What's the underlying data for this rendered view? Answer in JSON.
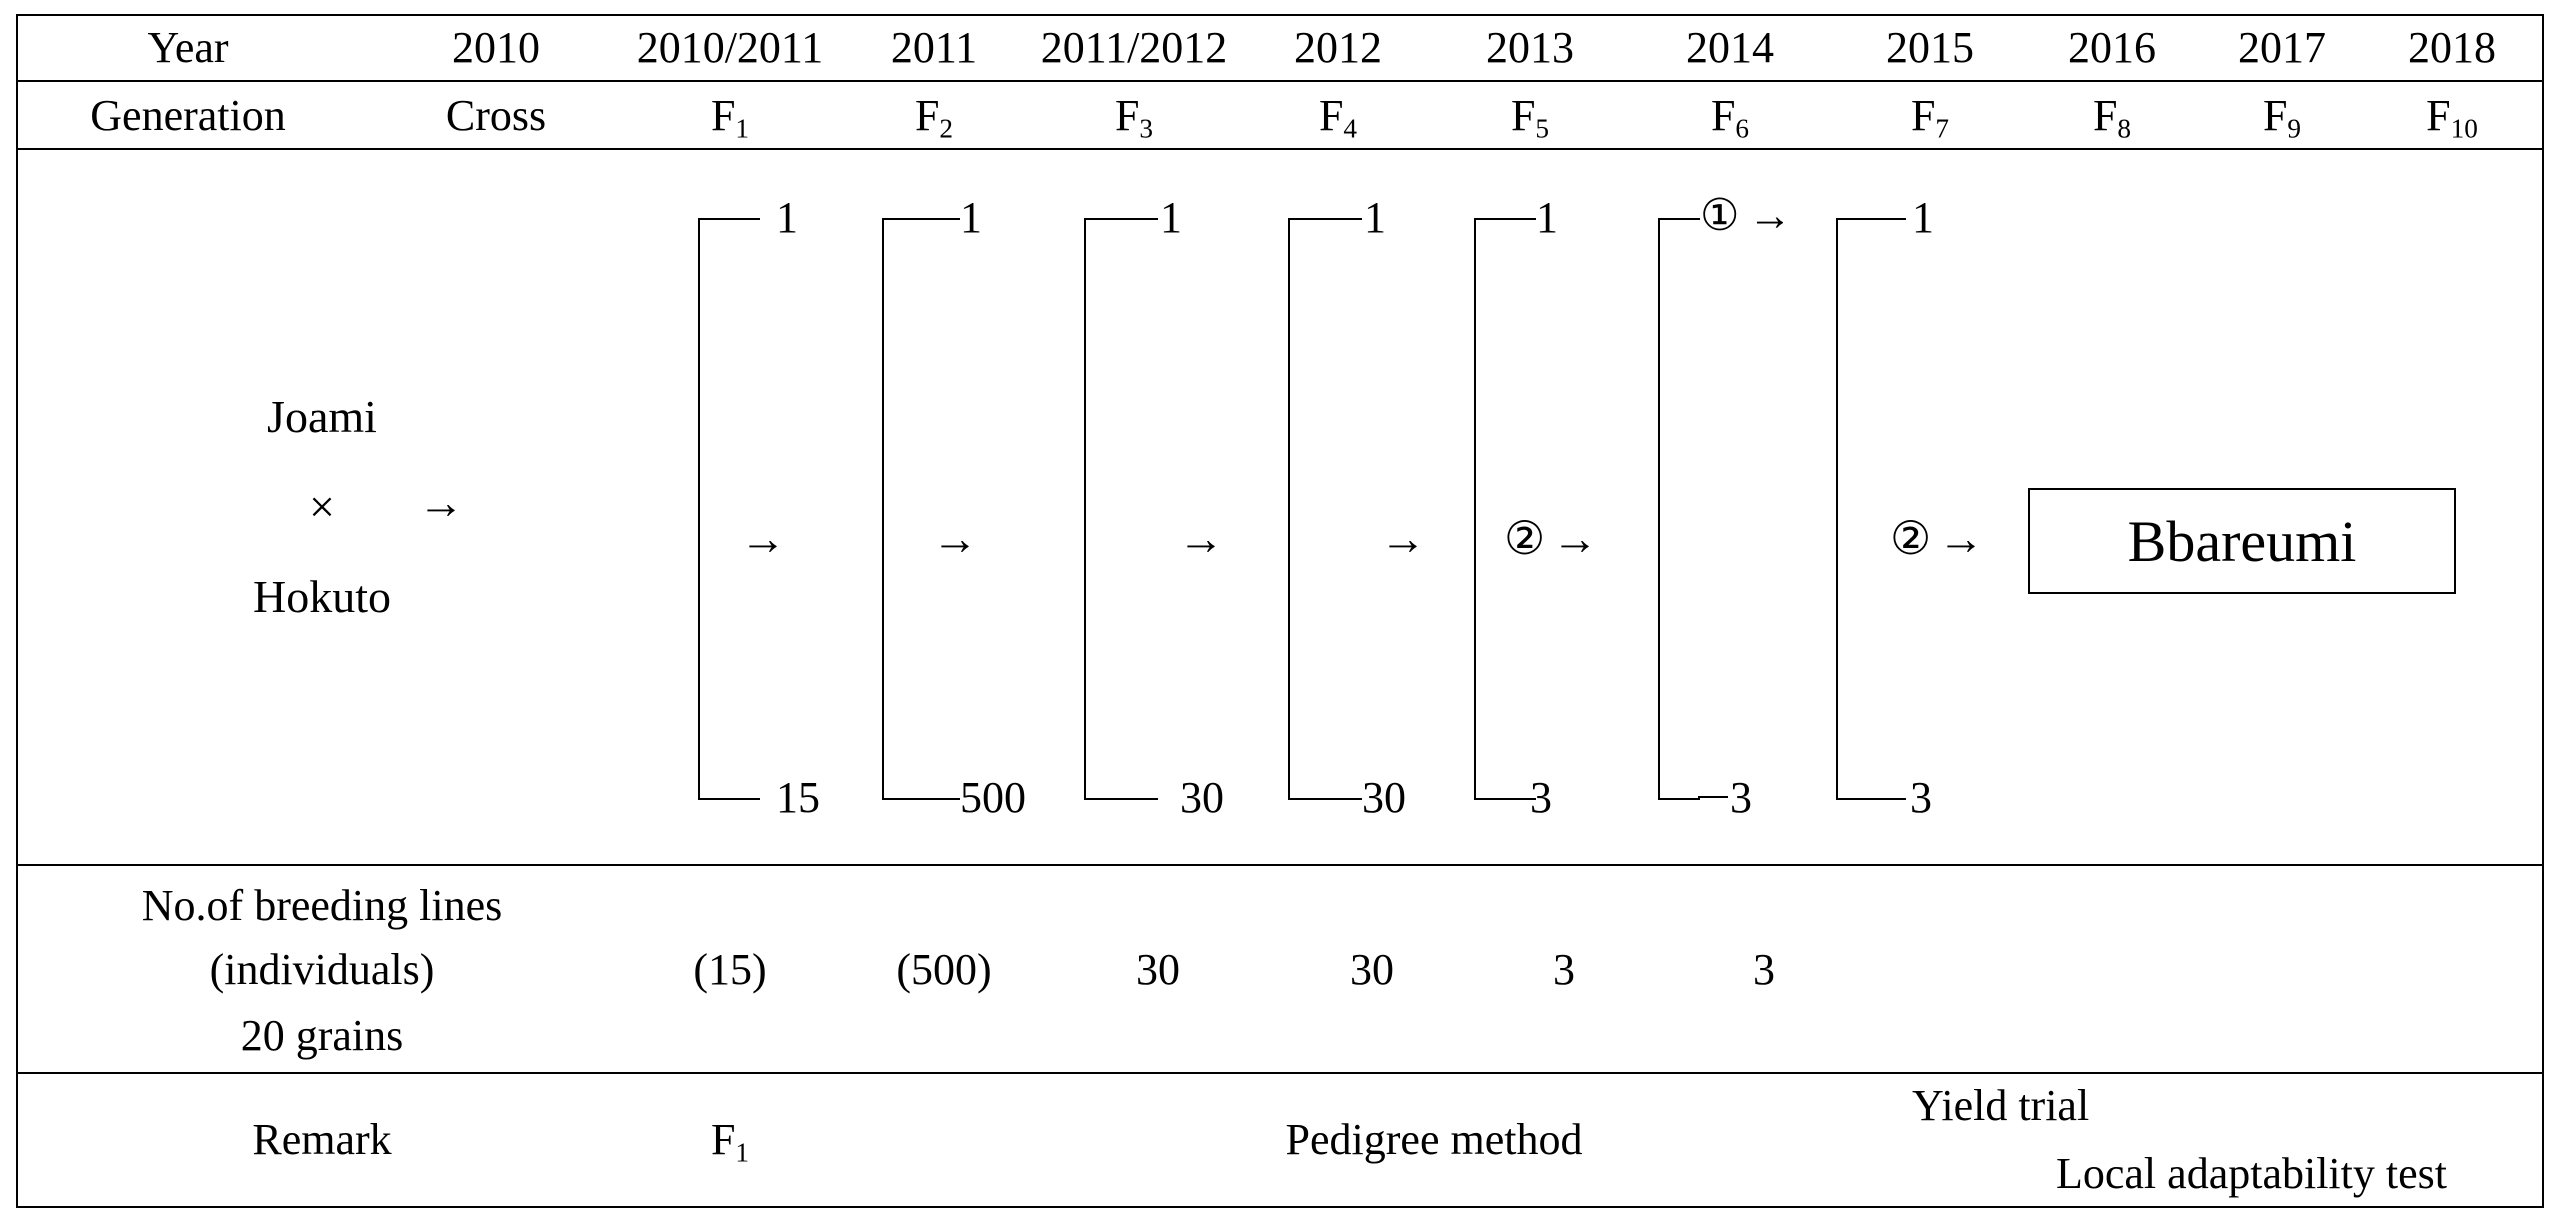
{
  "header": {
    "year_label": "Year",
    "years": [
      "2010",
      "2010/2011",
      "2011",
      "2011/2012",
      "2012",
      "2013",
      "2014",
      "2015",
      "2016",
      "2017",
      "2018"
    ],
    "generation_label": "Generation",
    "cross_label": "Cross",
    "generations": [
      {
        "base": "F",
        "sub": "1"
      },
      {
        "base": "F",
        "sub": "2"
      },
      {
        "base": "F",
        "sub": "3"
      },
      {
        "base": "F",
        "sub": "4"
      },
      {
        "base": "F",
        "sub": "5"
      },
      {
        "base": "F",
        "sub": "6"
      },
      {
        "base": "F",
        "sub": "7"
      },
      {
        "base": "F",
        "sub": "8"
      },
      {
        "base": "F",
        "sub": "9"
      },
      {
        "base": "F",
        "sub": "10"
      }
    ]
  },
  "pedigree": {
    "parent_a": "Joami",
    "cross_symbol": "×",
    "parent_b": "Hokuto",
    "arrow": "→",
    "brackets": [
      {
        "top": "1",
        "bottom": "15"
      },
      {
        "top": "1",
        "bottom": "500"
      },
      {
        "top": "1",
        "bottom": "30"
      },
      {
        "top": "1",
        "bottom": "30"
      },
      {
        "top": "1",
        "bottom": "3"
      },
      {
        "top": "①",
        "bottom": "3"
      },
      {
        "top": "1",
        "bottom": "3"
      }
    ],
    "selected_mid_2013": "②",
    "selected_mid_2015": "②",
    "result": "Bbareumi"
  },
  "lines_row": {
    "label_line1": "No.of  breeding  lines",
    "label_line2": "(individuals)",
    "label_line3": "20  grains",
    "values": [
      "(15)",
      "(500)",
      "30",
      "30",
      "3",
      "3"
    ]
  },
  "remark_row": {
    "label": "Remark",
    "f1": {
      "base": "F",
      "sub": "1"
    },
    "pedigree_method": "Pedigree  method",
    "yield_trial": "Yield  trial",
    "local_test": "Local  adaptability  test"
  }
}
